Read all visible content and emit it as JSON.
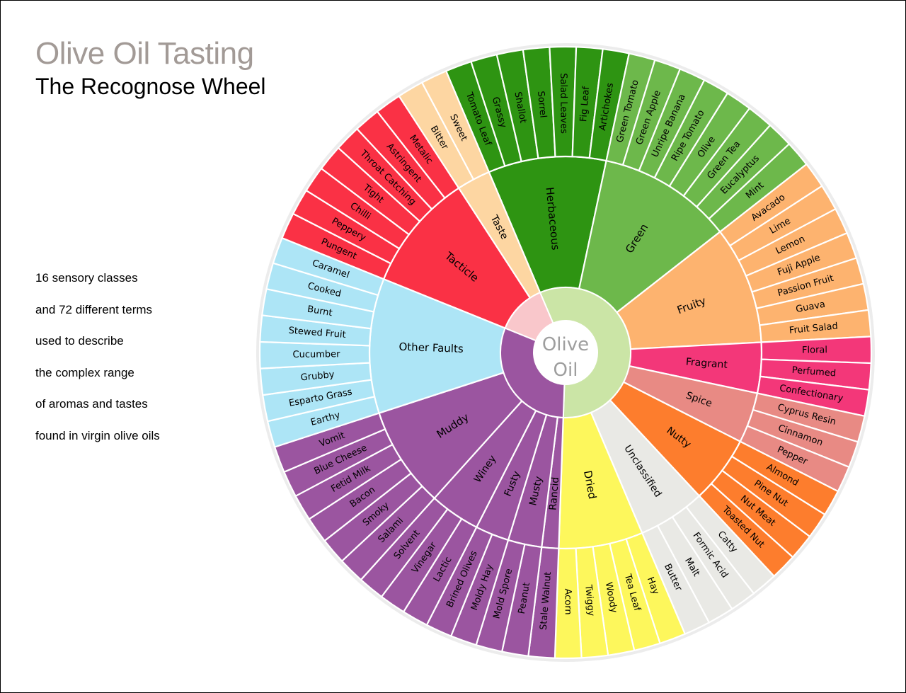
{
  "title": "Olive Oil Tasting",
  "subtitle": "The Recognose Wheel",
  "description": [
    "16 sensory classes",
    "and 72 different terms",
    "used to describe",
    "the complex range",
    "of aromas and tastes",
    "found in virgin olive oils"
  ],
  "center_label": [
    "Olive",
    "Oil"
  ],
  "colors": {
    "herbaceous": "#2e9412",
    "green": "#6db84b",
    "fruity": "#fdb36f",
    "fragrant": "#f33779",
    "spice": "#e88a84",
    "nutty": "#fd7d2d",
    "unclassified": "#e9e9e5",
    "dried": "#fdf75c",
    "rancid": "#9b55a0",
    "musty": "#9b55a0",
    "fusty": "#9b55a0",
    "winey": "#9b55a0",
    "muddy": "#9b55a0",
    "other_faults": "#ade5f6",
    "tacticle": "#fa3145",
    "taste": "#fdd6a2",
    "positive_core": "#cbe5a6",
    "negative_core_purple": "#9b55a0",
    "negative_core_pink": "#f9c7cb"
  },
  "categories": [
    {
      "key": "herbaceous",
      "label": "Herbaceous",
      "terms": [
        "Tomato Leaf",
        "Grassy",
        "Shallot",
        "Sorrel",
        "Salad Leaves",
        "Fig Leaf",
        "Artichokes"
      ]
    },
    {
      "key": "green",
      "label": "Green",
      "terms": [
        "Green Tomato",
        "Green Apple",
        "Unripe Banana",
        "Ripe Tomato",
        "Olive",
        "Green Tea",
        "Eucalyptus",
        "Mint"
      ]
    },
    {
      "key": "fruity",
      "label": "Fruity",
      "terms": [
        "Avacado",
        "Lime",
        "Lemon",
        "Fuji Apple",
        "Passion Fruit",
        "Guava",
        "Fruit Salad"
      ]
    },
    {
      "key": "fragrant",
      "label": "Fragrant",
      "terms": [
        "Floral",
        "Perfumed",
        "Confectionary"
      ]
    },
    {
      "key": "spice",
      "label": "Spice",
      "terms": [
        "Cyprus Resin",
        "Cinnamon",
        "Pepper"
      ]
    },
    {
      "key": "nutty",
      "label": "Nutty",
      "terms": [
        "Almond",
        "Pine Nut",
        "Nut Meat",
        "Toasted Nut"
      ]
    },
    {
      "key": "unclassified",
      "label": "Unclassified",
      "terms": [
        "Catty",
        "Formic Acid",
        "Malt",
        "Butter"
      ]
    },
    {
      "key": "dried",
      "label": "Dried",
      "terms": [
        "Hay",
        "Tea Leaf",
        "Woody",
        "Twiggy",
        "Acorn"
      ]
    },
    {
      "key": "rancid",
      "label": "Rancid",
      "terms": [
        "Stale Walnut"
      ]
    },
    {
      "key": "musty",
      "label": "Musty",
      "terms": [
        "Peanut",
        "Mold Spore"
      ]
    },
    {
      "key": "fusty",
      "label": "Fusty",
      "terms": [
        "Moldy Hay",
        "Brined Olives"
      ]
    },
    {
      "key": "winey",
      "label": "Winey",
      "terms": [
        "Lactic",
        "Vinegar",
        "Solvent"
      ]
    },
    {
      "key": "muddy",
      "label": "Muddy",
      "terms": [
        "Salami",
        "Smoky",
        "Bacon",
        "Fetid Milk",
        "Blue Cheese",
        "Vomit"
      ]
    },
    {
      "key": "other_faults",
      "label": "Other Faults",
      "terms": [
        "Earthy",
        "Esparto Grass",
        "Grubby",
        "Cucumber",
        "Stewed Fruit",
        "Burnt",
        "Cooked",
        "Caramel"
      ]
    },
    {
      "key": "tacticle",
      "label": "Tacticle",
      "terms": [
        "Pungent",
        "Peppery",
        "Chilli",
        "Tight",
        "Throat Catching",
        "Astringent",
        "Metalic"
      ]
    },
    {
      "key": "taste",
      "label": "Taste",
      "terms": [
        "Bitter",
        "Sweet"
      ]
    }
  ]
}
